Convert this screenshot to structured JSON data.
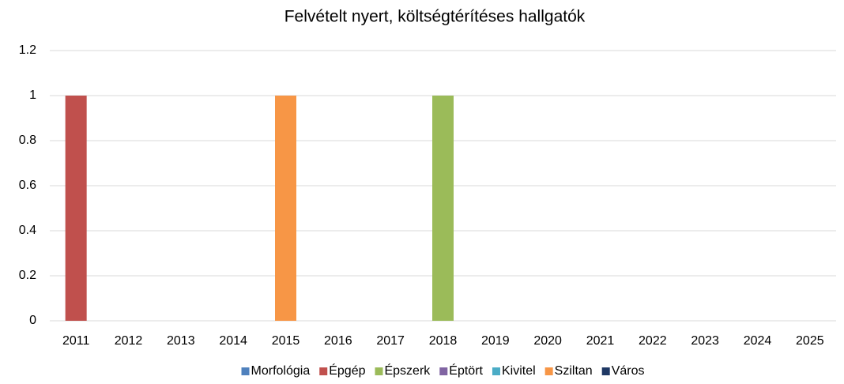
{
  "chart_data": {
    "type": "bar",
    "stacked": true,
    "title": "Felvételt nyert, költségtérítéses hallgatók",
    "categories": [
      "2011",
      "2012",
      "2013",
      "2014",
      "2015",
      "2016",
      "2017",
      "2018",
      "2019",
      "2020",
      "2021",
      "2022",
      "2023",
      "2024",
      "2025"
    ],
    "series": [
      {
        "name": "Morfológia",
        "color": "#4f81bd",
        "values": [
          0,
          0,
          0,
          0,
          0,
          0,
          0,
          0,
          0,
          0,
          0,
          0,
          0,
          0,
          0
        ]
      },
      {
        "name": "Épgép",
        "color": "#c0504d",
        "values": [
          1,
          0,
          0,
          0,
          0,
          0,
          0,
          0,
          0,
          0,
          0,
          0,
          0,
          0,
          0
        ]
      },
      {
        "name": "Épszerk",
        "color": "#9bbb59",
        "values": [
          0,
          0,
          0,
          0,
          0,
          0,
          0,
          1,
          0,
          0,
          0,
          0,
          0,
          0,
          0
        ]
      },
      {
        "name": "Éptört",
        "color": "#8064a2",
        "values": [
          0,
          0,
          0,
          0,
          0,
          0,
          0,
          0,
          0,
          0,
          0,
          0,
          0,
          0,
          0
        ]
      },
      {
        "name": "Kivitel",
        "color": "#4bacc6",
        "values": [
          0,
          0,
          0,
          0,
          0,
          0,
          0,
          0,
          0,
          0,
          0,
          0,
          0,
          0,
          0
        ]
      },
      {
        "name": "Sziltan",
        "color": "#f79646",
        "values": [
          0,
          0,
          0,
          0,
          1,
          0,
          0,
          0,
          0,
          0,
          0,
          0,
          0,
          0,
          0
        ]
      },
      {
        "name": "Város",
        "color": "#1f3864",
        "values": [
          0,
          0,
          0,
          0,
          0,
          0,
          0,
          0,
          0,
          0,
          0,
          0,
          0,
          0,
          0
        ]
      }
    ],
    "ylim": [
      0,
      1.2
    ],
    "yticks": [
      0,
      0.2,
      0.4,
      0.6,
      0.8,
      1,
      1.2
    ],
    "grid": true,
    "legend": "bottom"
  }
}
